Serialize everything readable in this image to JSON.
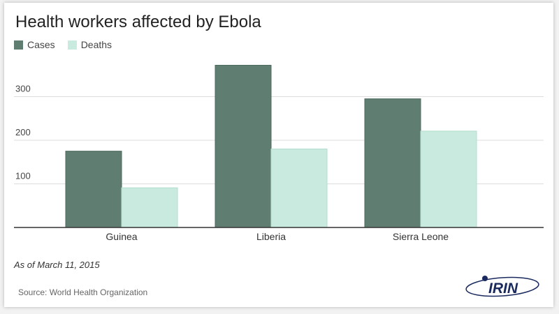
{
  "chart_data": {
    "type": "bar",
    "title": "Health workers affected by Ebola",
    "categories": [
      "Guinea",
      "Liberia",
      "Sierra Leone"
    ],
    "series": [
      {
        "name": "Cases",
        "color": "#5f7d70",
        "values": [
          175,
          372,
          295
        ]
      },
      {
        "name": "Deaths",
        "color": "#c9ebdf",
        "values": [
          91,
          180,
          221
        ]
      }
    ],
    "y_ticks": [
      100,
      200,
      300
    ],
    "ylim": [
      0,
      400
    ],
    "grid": true,
    "legend_position": "top-left"
  },
  "note": "As of March 11, 2015",
  "source": "Source: World Health Organization",
  "logo": {
    "text": "IRIN",
    "icon": "irin-logo",
    "color": "#1a2a5e"
  }
}
